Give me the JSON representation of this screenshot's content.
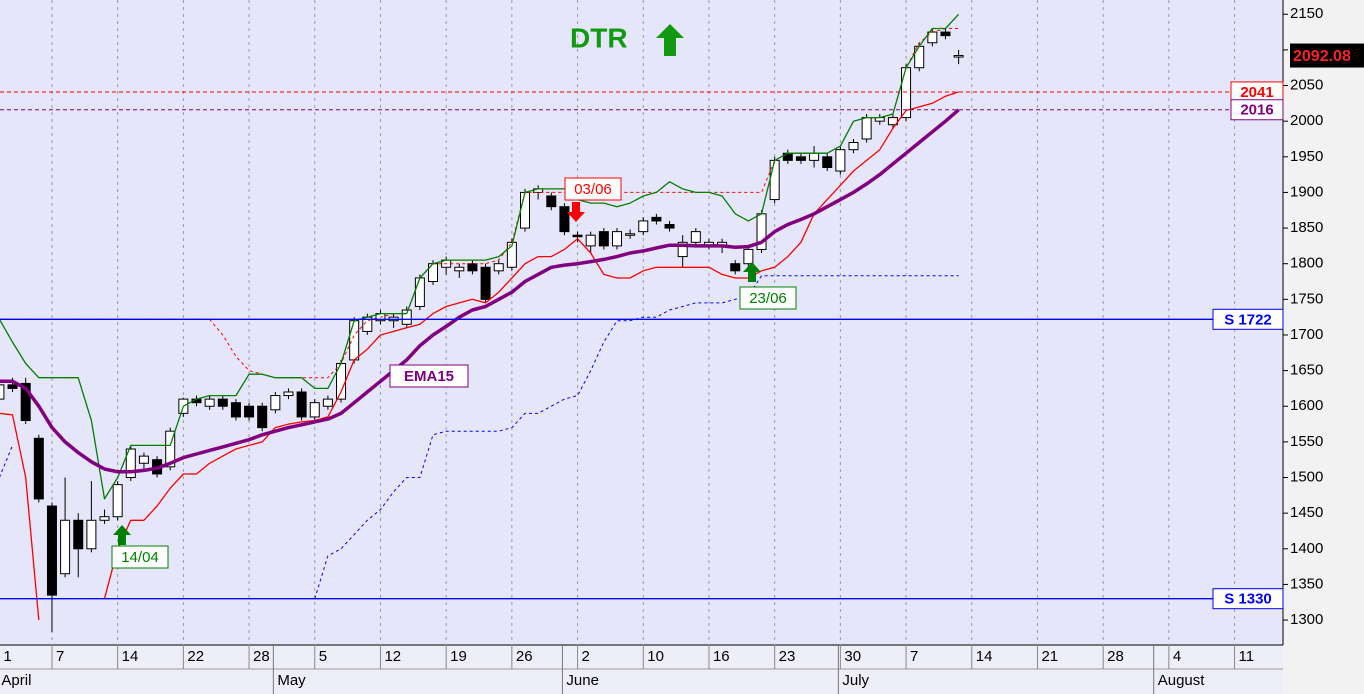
{
  "chart_data": {
    "type": "candlestick",
    "title": "DTR",
    "categories": [
      "1",
      null,
      null,
      null,
      "7",
      null,
      null,
      null,
      null,
      "14",
      null,
      null,
      null,
      null,
      "22",
      null,
      null,
      null,
      null,
      "28",
      null,
      null,
      null,
      null,
      "5",
      null,
      null,
      null,
      null,
      "12",
      null,
      null,
      null,
      null,
      "19",
      null,
      null,
      null,
      null,
      "26",
      null,
      null,
      null,
      null,
      "2",
      null,
      null,
      null,
      null,
      "10",
      null,
      null,
      null,
      null,
      "16",
      null,
      null,
      null,
      null,
      "23",
      null,
      null,
      null,
      null,
      "30",
      null,
      null,
      null,
      null,
      "7",
      null,
      null,
      null,
      null,
      "14",
      null,
      null,
      null,
      null,
      "21",
      null,
      null,
      null,
      null,
      "28",
      null,
      null,
      null,
      null,
      "4",
      null,
      null,
      null,
      null,
      "11",
      null,
      null,
      null
    ],
    "months": [
      "April",
      null,
      null,
      null,
      null,
      null,
      null,
      null,
      null,
      null,
      null,
      null,
      null,
      null,
      null,
      null,
      null,
      null,
      null,
      null,
      null,
      "May",
      null,
      null,
      null,
      null,
      null,
      null,
      null,
      null,
      null,
      null,
      null,
      null,
      null,
      null,
      null,
      null,
      null,
      null,
      null,
      null,
      null,
      "June",
      null,
      null,
      null,
      null,
      null,
      null,
      null,
      null,
      null,
      null,
      null,
      null,
      null,
      null,
      null,
      null,
      null,
      null,
      null,
      null,
      "July",
      null,
      null,
      null,
      null,
      null,
      null,
      null,
      null,
      null,
      null,
      null,
      null,
      null,
      null,
      null,
      null,
      null,
      null,
      null,
      null,
      null,
      null,
      null,
      "August",
      null,
      null,
      null,
      null,
      null,
      null,
      null,
      null,
      null
    ],
    "ohlc": {
      "open": [
        1610,
        1630,
        1632,
        1555,
        1460,
        1365,
        1440,
        1400,
        1440,
        1445,
        1500,
        1520,
        1525,
        1515,
        1590,
        1610,
        1600,
        1610,
        1605,
        1600,
        1600,
        1595,
        1615,
        1620,
        1585,
        1600,
        1610,
        1665,
        1705,
        1720,
        1720,
        1715,
        1740,
        1775,
        1795,
        1790,
        1800,
        1795,
        1790,
        1795,
        1850,
        1900,
        1895,
        1880,
        1840,
        1825,
        1845,
        1825,
        1840,
        1845,
        1865,
        1855,
        1810,
        1830,
        1825,
        1825,
        1800,
        1800,
        1820,
        1890,
        1955,
        1950,
        1945,
        1950,
        1930,
        1960,
        1975,
        2000,
        1995,
        2005,
        2075,
        2110,
        2125,
        2092,
        null,
        null,
        null,
        null,
        null,
        null,
        null,
        null,
        null,
        null,
        null,
        null,
        null,
        null,
        null,
        null,
        null,
        null,
        null,
        null,
        null,
        null,
        null,
        null
      ],
      "high": [
        1640,
        1640,
        1640,
        1560,
        1465,
        1500,
        1450,
        1495,
        1455,
        1495,
        1545,
        1535,
        1530,
        1570,
        1612,
        1615,
        1615,
        1615,
        1610,
        1605,
        1605,
        1620,
        1625,
        1625,
        1610,
        1615,
        1665,
        1725,
        1730,
        1735,
        1730,
        1740,
        1785,
        1805,
        1810,
        1800,
        1805,
        1800,
        1805,
        1835,
        1905,
        1910,
        1900,
        1885,
        1845,
        1845,
        1850,
        1850,
        1848,
        1865,
        1870,
        1860,
        1840,
        1850,
        1835,
        1835,
        1805,
        1825,
        1875,
        1950,
        1960,
        1955,
        1965,
        1955,
        1965,
        1975,
        2010,
        2010,
        2010,
        2080,
        2110,
        2130,
        2130,
        2100,
        null,
        null,
        null,
        null,
        null,
        null,
        null,
        null,
        null,
        null,
        null,
        null,
        null,
        null,
        null,
        null,
        null,
        null,
        null,
        null,
        null,
        null,
        null,
        null
      ],
      "low": [
        1600,
        1620,
        1575,
        1465,
        1283,
        1360,
        1360,
        1395,
        1435,
        1440,
        1495,
        1510,
        1500,
        1510,
        1585,
        1600,
        1595,
        1595,
        1580,
        1580,
        1565,
        1590,
        1610,
        1580,
        1580,
        1595,
        1605,
        1660,
        1700,
        1715,
        1710,
        1710,
        1735,
        1770,
        1785,
        1780,
        1785,
        1745,
        1785,
        1790,
        1845,
        1890,
        1875,
        1840,
        1830,
        1815,
        1820,
        1820,
        1835,
        1840,
        1855,
        1845,
        1795,
        1825,
        1820,
        1815,
        1785,
        1795,
        1815,
        1885,
        1940,
        1940,
        1935,
        1930,
        1925,
        1955,
        1970,
        1995,
        1990,
        2000,
        2070,
        2105,
        2115,
        2080,
        null,
        null,
        null,
        null,
        null,
        null,
        null,
        null,
        null,
        null,
        null,
        null,
        null,
        null,
        null,
        null,
        null,
        null,
        null,
        null,
        null,
        null,
        null,
        null
      ],
      "close": [
        1630,
        1625,
        1580,
        1470,
        1335,
        1440,
        1400,
        1440,
        1445,
        1490,
        1540,
        1530,
        1505,
        1565,
        1610,
        1605,
        1610,
        1600,
        1585,
        1585,
        1570,
        1615,
        1620,
        1585,
        1605,
        1610,
        1660,
        1720,
        1725,
        1730,
        1725,
        1735,
        1780,
        1800,
        1805,
        1795,
        1790,
        1750,
        1800,
        1830,
        1900,
        1905,
        1880,
        1845,
        1838,
        1840,
        1825,
        1845,
        1842,
        1860,
        1860,
        1850,
        1830,
        1845,
        1830,
        1830,
        1790,
        1820,
        1870,
        1945,
        1945,
        1945,
        1955,
        1935,
        1960,
        1970,
        2005,
        2005,
        2005,
        2075,
        2105,
        2125,
        2120,
        2092.08,
        null,
        null,
        null,
        null,
        null,
        null,
        null,
        null,
        null,
        null,
        null,
        null,
        null,
        null,
        null,
        null,
        null,
        null,
        null,
        null,
        null,
        null,
        null,
        null
      ]
    },
    "series": [
      {
        "color": "#ff0000",
        "dash": true,
        "width": 1,
        "values": [
          1722,
          1722,
          1722,
          1722,
          1722,
          1722,
          1722,
          1722,
          1722,
          1722,
          1722,
          1722,
          1722,
          1722,
          1722,
          1722,
          1722,
          1700,
          1670,
          1650,
          1645,
          1640,
          1640,
          1640,
          1640,
          1640,
          1660,
          1700,
          1720,
          1725,
          1730,
          1730,
          1780,
          1800,
          1800,
          1800,
          1800,
          1800,
          1805,
          1830,
          1900,
          1900,
          1900,
          1900,
          1900,
          1900,
          1900,
          1900,
          1900,
          1900,
          1900,
          1900,
          1900,
          1900,
          1900,
          1900,
          1900,
          1900,
          1900,
          1945,
          1955,
          1955,
          1955,
          1955,
          1965,
          2000,
          2005,
          2005,
          2010,
          2075,
          2110,
          2125,
          2130,
          2130,
          null,
          null,
          null,
          null,
          null,
          null,
          null,
          null,
          null,
          null,
          null,
          null,
          null,
          null,
          null,
          null,
          null,
          null,
          null,
          null,
          null,
          null,
          null,
          null
        ]
      },
      {
        "color": "#0000ff",
        "dash": true,
        "width": 1,
        "values": [
          1500,
          1545,
          null,
          null,
          null,
          null,
          null,
          null,
          null,
          null,
          null,
          null,
          null,
          null,
          null,
          null,
          null,
          null,
          null,
          null,
          null,
          null,
          null,
          null,
          1330,
          1390,
          1400,
          1420,
          1440,
          1455,
          1480,
          1500,
          1500,
          1560,
          1565,
          1565,
          1565,
          1565,
          1565,
          1570,
          1590,
          1590,
          1600,
          1610,
          1615,
          1650,
          1690,
          1720,
          1720,
          1725,
          1725,
          1735,
          1740,
          1745,
          1745,
          1745,
          1750,
          1755,
          1783,
          1783,
          1783,
          1783,
          1783,
          1783,
          1783,
          1783,
          1783,
          1783,
          1783,
          1783,
          1783,
          1783,
          1783,
          1783,
          null,
          null,
          null,
          null,
          null,
          null,
          null,
          null,
          null,
          null,
          null,
          null,
          null,
          null,
          null,
          null,
          null,
          null,
          null,
          null,
          null,
          null,
          null,
          null
        ]
      },
      {
        "color": "#008000",
        "dash": false,
        "width": 1.3,
        "values": [
          1722,
          1690,
          1660,
          1640,
          1640,
          1640,
          1640,
          1580,
          1470,
          1500,
          1545,
          1545,
          1545,
          1545,
          1600,
          1610,
          1615,
          1615,
          1615,
          1645,
          1645,
          1640,
          1640,
          1640,
          1625,
          1625,
          1660,
          1720,
          1725,
          1730,
          1730,
          1730,
          1780,
          1800,
          1805,
          1805,
          1805,
          1805,
          1810,
          1825,
          1900,
          1905,
          1905,
          1905,
          1890,
          1885,
          1885,
          1880,
          1885,
          1895,
          1900,
          1915,
          1905,
          1900,
          1900,
          1895,
          1870,
          1860,
          1870,
          1945,
          1955,
          1955,
          1955,
          1955,
          1965,
          2000,
          2005,
          2005,
          2010,
          2075,
          2105,
          2130,
          2130,
          2150,
          null,
          null,
          null,
          null,
          null,
          null,
          null,
          null,
          null,
          null,
          null,
          null,
          null,
          null,
          null,
          null,
          null,
          null,
          null,
          null,
          null,
          null,
          null,
          null
        ]
      },
      {
        "color": "#ff0000",
        "dash": false,
        "width": 1.3,
        "values": [
          1590,
          1588,
          1500,
          1300,
          null,
          null,
          null,
          null,
          1330,
          1400,
          1440,
          1440,
          1460,
          1485,
          1505,
          1505,
          1520,
          1530,
          1540,
          1545,
          1550,
          1570,
          1575,
          1578,
          1580,
          1585,
          1620,
          1665,
          1680,
          1700,
          1705,
          1710,
          1715,
          1730,
          1740,
          1745,
          1750,
          1745,
          1760,
          1780,
          1800,
          1810,
          1810,
          1820,
          1835,
          1815,
          1785,
          1780,
          1780,
          1790,
          1795,
          1795,
          1795,
          1795,
          1795,
          1785,
          1780,
          1780,
          1790,
          1795,
          1810,
          1830,
          1870,
          1890,
          1910,
          1930,
          1945,
          1960,
          1990,
          2015,
          2020,
          2025,
          2035,
          2041,
          null,
          null,
          null,
          null,
          null,
          null,
          null,
          null,
          null,
          null,
          null,
          null,
          null,
          null,
          null,
          null,
          null,
          null,
          null,
          null,
          null,
          null,
          null,
          null
        ]
      },
      {
        "name": "EMA15",
        "color": "#800080",
        "dash": false,
        "width": 3.5,
        "values": [
          1635,
          1635,
          1625,
          1600,
          1570,
          1550,
          1535,
          1522,
          1512,
          1508,
          1508,
          1510,
          1513,
          1520,
          1528,
          1533,
          1538,
          1543,
          1548,
          1553,
          1560,
          1565,
          1570,
          1574,
          1578,
          1582,
          1590,
          1605,
          1620,
          1635,
          1650,
          1665,
          1685,
          1700,
          1712,
          1725,
          1735,
          1740,
          1750,
          1760,
          1775,
          1785,
          1795,
          1798,
          1800,
          1803,
          1806,
          1810,
          1815,
          1818,
          1822,
          1826,
          1826,
          1825,
          1825,
          1825,
          1823,
          1824,
          1830,
          1845,
          1855,
          1862,
          1870,
          1880,
          1890,
          1900,
          1912,
          1925,
          1940,
          1955,
          1970,
          1985,
          2000,
          2016,
          null,
          null,
          null,
          null,
          null,
          null,
          null,
          null,
          null,
          null,
          null,
          null,
          null,
          null,
          null,
          null,
          null,
          null,
          null,
          null,
          null,
          null,
          null,
          null
        ]
      }
    ],
    "levels": [
      {
        "value": 2041,
        "color": "#ff0000",
        "dash": true
      },
      {
        "value": 2016,
        "color": "#800080",
        "dash": true
      },
      {
        "value": 1722,
        "label": "S 1722",
        "color": "#0000ff",
        "dash": false
      },
      {
        "value": 1330,
        "label": "S 1330",
        "color": "#0000ff",
        "dash": false
      }
    ],
    "last_price": 2092.08,
    "signals": [
      "14/04",
      "03/06",
      "23/06"
    ],
    "ylim": [
      1265,
      2170
    ],
    "yticks": [
      1300,
      1350,
      1400,
      1450,
      1500,
      1550,
      1600,
      1650,
      1700,
      1750,
      1800,
      1850,
      1900,
      1950,
      2000,
      2050,
      2100,
      2150
    ],
    "grid": true,
    "up_color": "#ffffff",
    "down_color": "#000000"
  }
}
